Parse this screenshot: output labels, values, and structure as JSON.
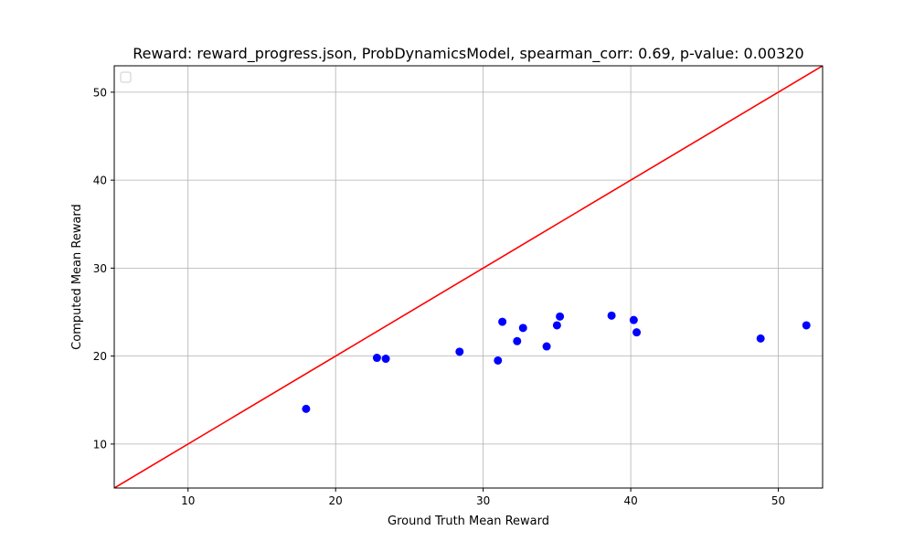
{
  "chart_data": {
    "type": "scatter",
    "title": "Reward: reward_progress.json, ProbDynamicsModel, spearman_corr: 0.69, p-value: 0.00320",
    "xlabel": "Ground Truth Mean Reward",
    "ylabel": "Computed Mean Reward",
    "xlim": [
      5,
      53
    ],
    "ylim": [
      5,
      53
    ],
    "xticks": [
      10,
      20,
      30,
      40,
      50
    ],
    "yticks": [
      10,
      20,
      30,
      40,
      50
    ],
    "grid": true,
    "legend": "top-left, empty",
    "reference_line": {
      "x": [
        5,
        53
      ],
      "y": [
        5,
        53
      ],
      "color": "#ff0000"
    },
    "point_color": "#0000ff",
    "points": [
      {
        "x": 18.0,
        "y": 14.0
      },
      {
        "x": 22.8,
        "y": 19.8
      },
      {
        "x": 23.4,
        "y": 19.7
      },
      {
        "x": 28.4,
        "y": 20.5
      },
      {
        "x": 31.0,
        "y": 19.5
      },
      {
        "x": 31.3,
        "y": 23.9
      },
      {
        "x": 32.3,
        "y": 21.7
      },
      {
        "x": 32.7,
        "y": 23.2
      },
      {
        "x": 34.3,
        "y": 21.1
      },
      {
        "x": 35.0,
        "y": 23.5
      },
      {
        "x": 35.2,
        "y": 24.5
      },
      {
        "x": 38.7,
        "y": 24.6
      },
      {
        "x": 40.2,
        "y": 24.1
      },
      {
        "x": 40.4,
        "y": 22.7
      },
      {
        "x": 48.8,
        "y": 22.0
      },
      {
        "x": 51.9,
        "y": 23.5
      }
    ]
  }
}
